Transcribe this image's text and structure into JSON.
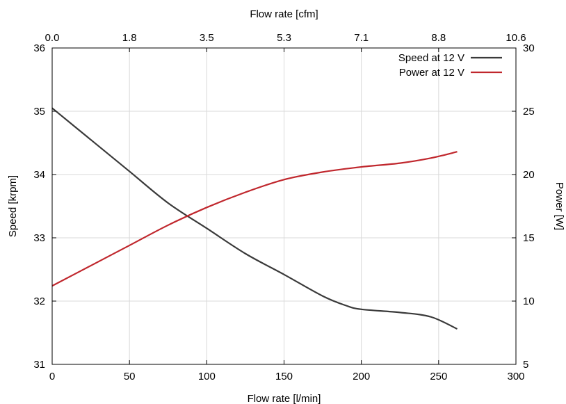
{
  "chart_data": {
    "type": "line",
    "xlabel_bottom": "Flow rate [l/min]",
    "xlabel_top": "Flow rate [cfm]",
    "ylabel_left": "Speed [krpm]",
    "ylabel_right": "Power [W]",
    "xlim": [
      0,
      300
    ],
    "ylim_left": [
      31,
      36
    ],
    "ylim_right": [
      5,
      30
    ],
    "x_ticks": [
      "0",
      "50",
      "100",
      "150",
      "200",
      "250",
      "300"
    ],
    "x_top_ticks": [
      "0.0",
      "1.8",
      "3.5",
      "5.3",
      "7.1",
      "8.8",
      "10.6"
    ],
    "y_left_ticks": [
      "31",
      "32",
      "33",
      "34",
      "35",
      "36"
    ],
    "y_right_ticks": [
      "5",
      "10",
      "15",
      "20",
      "25",
      "30"
    ],
    "grid": true,
    "legend_position": "top-right",
    "series": [
      {
        "name": "Speed at 12 V",
        "axis": "left",
        "color": "#3a3a3a",
        "x": [
          0,
          25,
          50,
          75,
          100,
          125,
          150,
          175,
          190,
          200,
          225,
          245,
          262
        ],
        "y": [
          35.05,
          34.55,
          34.05,
          33.55,
          33.15,
          32.75,
          32.42,
          32.08,
          31.93,
          31.87,
          31.82,
          31.75,
          31.56
        ]
      },
      {
        "name": "Power at 12 V",
        "axis": "right",
        "color": "#c0272d",
        "x": [
          0,
          25,
          50,
          75,
          100,
          125,
          150,
          175,
          200,
          225,
          245,
          262
        ],
        "y": [
          11.2,
          12.8,
          14.4,
          16.0,
          17.4,
          18.6,
          19.6,
          20.2,
          20.6,
          20.9,
          21.3,
          21.8
        ]
      }
    ]
  }
}
